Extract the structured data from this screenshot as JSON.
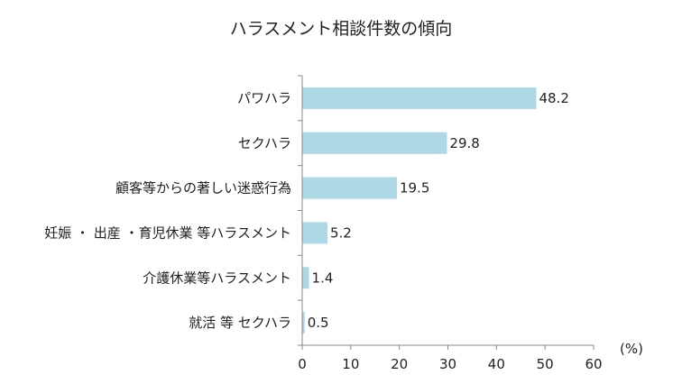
{
  "chart_data": {
    "type": "bar",
    "orientation": "horizontal",
    "title": "ハラスメント相談件数の傾向",
    "categories": [
      "パワハラ",
      "セクハラ",
      "顧客等からの著しい迷惑行為",
      "妊娠 ・ 出産 ・育児休業 等ハラスメント",
      "介護休業等ハラスメント",
      "就活 等 セクハラ"
    ],
    "values": [
      48.2,
      29.8,
      19.5,
      5.2,
      1.4,
      0.5
    ],
    "value_labels": [
      "48.2",
      "29.8",
      "19.5",
      "5.2",
      "1.4",
      "0.5"
    ],
    "xlim": [
      0,
      60
    ],
    "x_ticks": [
      "0",
      "10",
      "20",
      "30",
      "40",
      "50",
      "60"
    ],
    "x_unit": "(%)",
    "grid": false,
    "legend": "none",
    "bar_color": "#add8e6",
    "axis_color": "#888888"
  }
}
